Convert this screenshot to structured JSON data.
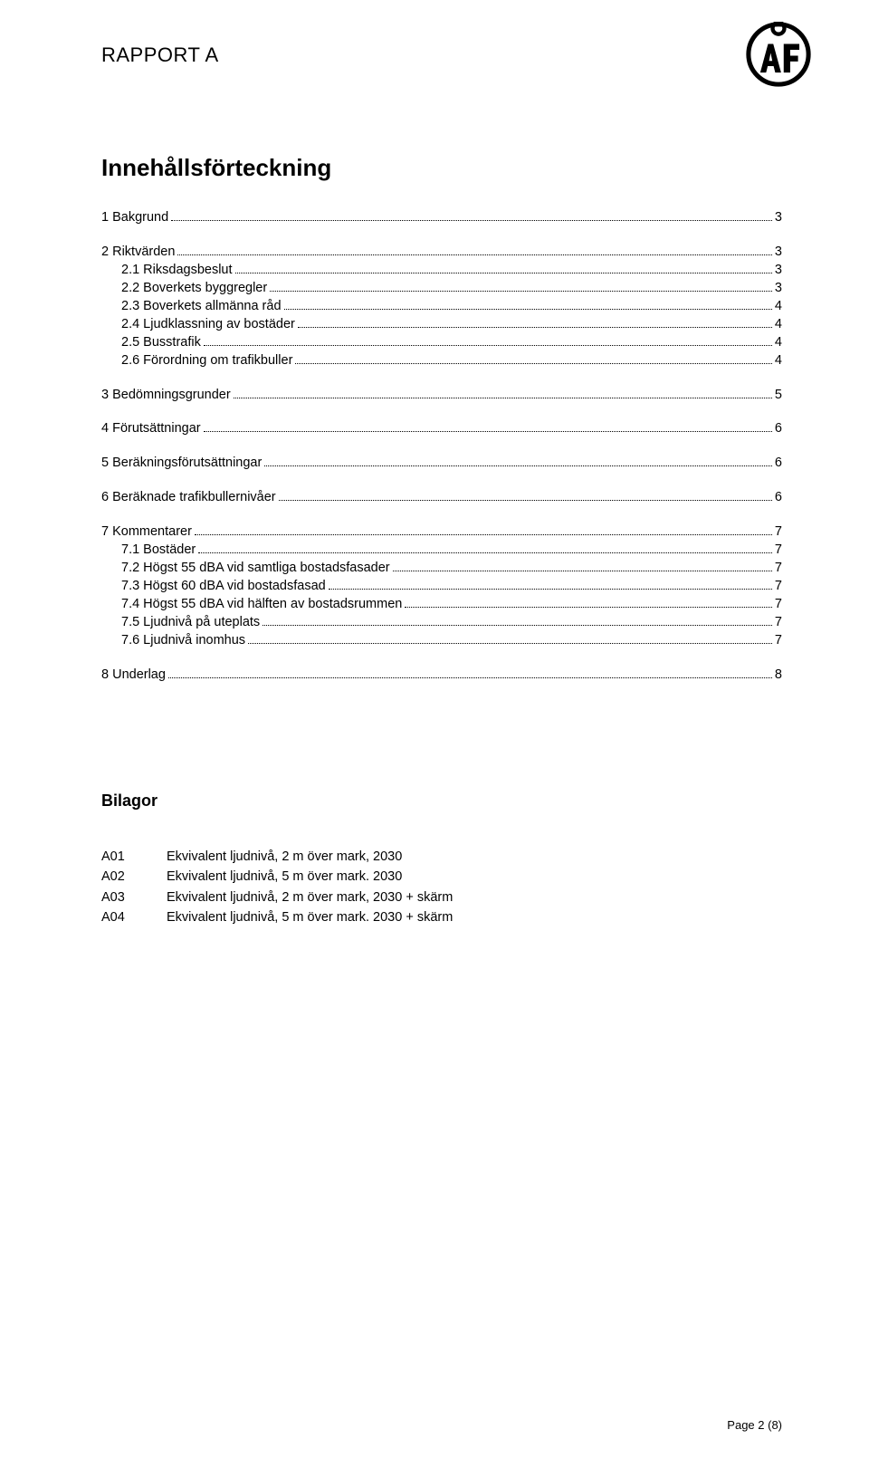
{
  "header_label": "RAPPORT A",
  "main_heading": "Innehållsförteckning",
  "toc": [
    {
      "level": 1,
      "label": "1 Bakgrund",
      "page": "3"
    },
    {
      "level": 1,
      "label": "2 Riktvärden",
      "page": "3"
    },
    {
      "level": 2,
      "label": "2.1 Riksdagsbeslut",
      "page": "3"
    },
    {
      "level": 2,
      "label": "2.2 Boverkets byggregler",
      "page": "3"
    },
    {
      "level": 2,
      "label": "2.3 Boverkets allmänna råd",
      "page": "4"
    },
    {
      "level": 2,
      "label": "2.4 Ljudklassning av bostäder",
      "page": "4"
    },
    {
      "level": 2,
      "label": "2.5 Busstrafik",
      "page": "4"
    },
    {
      "level": 2,
      "label": "2.6 Förordning om trafikbuller",
      "page": "4"
    },
    {
      "level": 1,
      "label": "3 Bedömningsgrunder",
      "page": "5"
    },
    {
      "level": 1,
      "label": "4 Förutsättningar",
      "page": "6"
    },
    {
      "level": 1,
      "label": "5 Beräkningsförutsättningar",
      "page": "6"
    },
    {
      "level": 1,
      "label": "6 Beräknade trafikbullernivåer",
      "page": "6"
    },
    {
      "level": 1,
      "label": "7 Kommentarer",
      "page": "7"
    },
    {
      "level": 2,
      "label": "7.1 Bostäder",
      "page": "7"
    },
    {
      "level": 2,
      "label": "7.2 Högst 55 dBA vid samtliga bostadsfasader",
      "page": "7"
    },
    {
      "level": 2,
      "label": "7.3 Högst 60 dBA vid bostadsfasad",
      "page": "7"
    },
    {
      "level": 2,
      "label": "7.4 Högst 55 dBA vid hälften av bostadsrummen",
      "page": "7"
    },
    {
      "level": 2,
      "label": "7.5 Ljudnivå på uteplats",
      "page": "7"
    },
    {
      "level": 2,
      "label": "7.6 Ljudnivå inomhus",
      "page": "7"
    },
    {
      "level": 1,
      "label": "8 Underlag",
      "page": "8"
    }
  ],
  "bilagor_heading": "Bilagor",
  "attachments": [
    {
      "code": "A01",
      "desc": "Ekvivalent ljudnivå, 2 m över mark, 2030"
    },
    {
      "code": "A02",
      "desc": "Ekvivalent ljudnivå, 5 m över mark. 2030"
    },
    {
      "code": "A03",
      "desc": "Ekvivalent ljudnivå, 2 m över mark, 2030 + skärm"
    },
    {
      "code": "A04",
      "desc": "Ekvivalent ljudnivå, 5 m över mark. 2030 + skärm"
    }
  ],
  "footer": "Page 2 (8)",
  "colors": {
    "text": "#000000",
    "background": "#ffffff"
  },
  "typography": {
    "body_font": "Verdana",
    "body_size_pt": 11,
    "header_label_size_pt": 17,
    "main_heading_size_pt": 20,
    "bilagor_heading_size_pt": 14
  }
}
